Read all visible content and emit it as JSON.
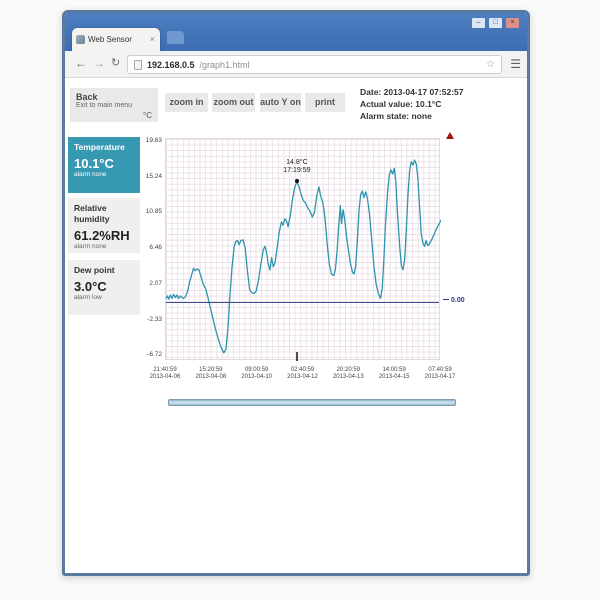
{
  "browser": {
    "tab": {
      "title": "Web Sensor"
    },
    "url": {
      "host": "192.168.0.5",
      "path": "/graph1.html"
    },
    "icons": {
      "back": "←",
      "forward": "→",
      "reload": "↻",
      "bookmark": "☆",
      "menu": "☰",
      "tab_close": "×",
      "minimize": "–",
      "maximize": "□",
      "close_window": "×"
    }
  },
  "page": {
    "back_button": {
      "label": "Back",
      "subtitle": "Exit to main menu"
    },
    "toolbar_buttons": [
      "zoom in",
      "zoom out",
      "auto Y on",
      "print"
    ],
    "status": {
      "date": "Date: 2013-04-17 07:52:57",
      "actual_value": "Actual value: 10.1°C",
      "alarm_state": "Alarm state: none"
    },
    "unit_label": "°C",
    "channels": [
      {
        "name": "Temperature",
        "value": "10.1°C",
        "alarm": "alarm none",
        "selected": true
      },
      {
        "name": "Relative humidity",
        "value": "61.2%RH",
        "alarm": "alarm none",
        "selected": false
      },
      {
        "name": "Dew point",
        "value": "3.0°C",
        "alarm": "alarm low",
        "selected": false
      }
    ]
  },
  "colors": {
    "accent_teal": "#3798b2",
    "chart_line": "#2e93ad",
    "zero_line": "#3a4a96",
    "titlebar_blue": "#4c7ec0",
    "alarm_red": "#a80f0f"
  },
  "chart_data": {
    "type": "line",
    "ylabel": "°C",
    "ylim": [
      -7.3,
      20.0
    ],
    "grid": true,
    "y_ticks": [
      {
        "label": "19.63",
        "value": 19.63
      },
      {
        "label": "15.24",
        "value": 15.24
      },
      {
        "label": "10.85",
        "value": 10.85
      },
      {
        "label": "6.46",
        "value": 6.46
      },
      {
        "label": "2.07",
        "value": 2.07
      },
      {
        "label": "-2.33",
        "value": -2.33
      },
      {
        "label": "-6.72",
        "value": -6.72
      }
    ],
    "x_ticks": [
      {
        "time": "21:40:59",
        "date": "2013-04-06"
      },
      {
        "time": "15:20:59",
        "date": "2013-04-08"
      },
      {
        "time": "09:00:59",
        "date": "2013-04-10"
      },
      {
        "time": "02:40:59",
        "date": "2013-04-12"
      },
      {
        "time": "20:20:59",
        "date": "2013-04-13"
      },
      {
        "time": "14:00:59",
        "date": "2013-04-15"
      },
      {
        "time": "07:40:59",
        "date": "2013-04-17"
      }
    ],
    "zero_line": {
      "value": 0,
      "label": "0.00"
    },
    "annotation": {
      "x_frac": 0.476,
      "value": 14.8,
      "line1": "14.8°C",
      "line2": "17:19:59"
    },
    "series": [
      [
        0.0,
        0.4
      ],
      [
        0.005,
        0.7
      ],
      [
        0.01,
        0.3
      ],
      [
        0.016,
        0.8
      ],
      [
        0.022,
        0.4
      ],
      [
        0.028,
        0.9
      ],
      [
        0.034,
        0.5
      ],
      [
        0.04,
        0.8
      ],
      [
        0.046,
        0.4
      ],
      [
        0.052,
        0.7
      ],
      [
        0.058,
        0.5
      ],
      [
        0.064,
        0.4
      ],
      [
        0.07,
        0.6
      ],
      [
        0.078,
        1.2
      ],
      [
        0.086,
        2.4
      ],
      [
        0.094,
        3.4
      ],
      [
        0.1,
        4.1
      ],
      [
        0.106,
        3.8
      ],
      [
        0.112,
        4.0
      ],
      [
        0.12,
        3.9
      ],
      [
        0.128,
        3.0
      ],
      [
        0.136,
        2.1
      ],
      [
        0.144,
        1.6
      ],
      [
        0.152,
        0.6
      ],
      [
        0.16,
        -0.6
      ],
      [
        0.17,
        -2.0
      ],
      [
        0.18,
        -3.4
      ],
      [
        0.19,
        -4.6
      ],
      [
        0.2,
        -5.6
      ],
      [
        0.21,
        -6.3
      ],
      [
        0.218,
        -5.8
      ],
      [
        0.226,
        -3.0
      ],
      [
        0.232,
        0.5
      ],
      [
        0.24,
        4.2
      ],
      [
        0.248,
        6.8
      ],
      [
        0.254,
        7.4
      ],
      [
        0.26,
        7.5
      ],
      [
        0.266,
        7.0
      ],
      [
        0.272,
        7.5
      ],
      [
        0.28,
        7.6
      ],
      [
        0.288,
        6.6
      ],
      [
        0.296,
        3.8
      ],
      [
        0.304,
        1.5
      ],
      [
        0.312,
        1.1
      ],
      [
        0.32,
        1.0
      ],
      [
        0.328,
        1.3
      ],
      [
        0.336,
        2.6
      ],
      [
        0.346,
        4.8
      ],
      [
        0.354,
        6.4
      ],
      [
        0.36,
        6.8
      ],
      [
        0.366,
        6.0
      ],
      [
        0.372,
        4.6
      ],
      [
        0.378,
        3.9
      ],
      [
        0.384,
        5.4
      ],
      [
        0.39,
        4.3
      ],
      [
        0.396,
        4.7
      ],
      [
        0.404,
        6.6
      ],
      [
        0.412,
        8.6
      ],
      [
        0.42,
        9.8
      ],
      [
        0.426,
        9.4
      ],
      [
        0.432,
        10.2
      ],
      [
        0.438,
        9.9
      ],
      [
        0.444,
        9.2
      ],
      [
        0.452,
        10.6
      ],
      [
        0.46,
        12.6
      ],
      [
        0.468,
        14.0
      ],
      [
        0.476,
        14.8
      ],
      [
        0.484,
        14.1
      ],
      [
        0.492,
        13.1
      ],
      [
        0.5,
        12.4
      ],
      [
        0.508,
        12.1
      ],
      [
        0.516,
        11.5
      ],
      [
        0.524,
        11.1
      ],
      [
        0.532,
        10.4
      ],
      [
        0.54,
        11.0
      ],
      [
        0.548,
        13.0
      ],
      [
        0.556,
        14.1
      ],
      [
        0.562,
        13.0
      ],
      [
        0.57,
        12.2
      ],
      [
        0.578,
        10.4
      ],
      [
        0.586,
        7.2
      ],
      [
        0.594,
        4.6
      ],
      [
        0.602,
        3.4
      ],
      [
        0.61,
        3.2
      ],
      [
        0.616,
        4.0
      ],
      [
        0.622,
        6.2
      ],
      [
        0.628,
        9.4
      ],
      [
        0.634,
        11.8
      ],
      [
        0.638,
        9.6
      ],
      [
        0.644,
        11.3
      ],
      [
        0.65,
        10.0
      ],
      [
        0.656,
        8.2
      ],
      [
        0.662,
        6.6
      ],
      [
        0.67,
        4.8
      ],
      [
        0.678,
        3.6
      ],
      [
        0.684,
        3.4
      ],
      [
        0.69,
        4.4
      ],
      [
        0.696,
        7.6
      ],
      [
        0.702,
        11.2
      ],
      [
        0.708,
        13.2
      ],
      [
        0.714,
        13.6
      ],
      [
        0.72,
        12.8
      ],
      [
        0.726,
        13.5
      ],
      [
        0.732,
        12.8
      ],
      [
        0.74,
        10.8
      ],
      [
        0.748,
        7.6
      ],
      [
        0.756,
        4.4
      ],
      [
        0.764,
        2.2
      ],
      [
        0.772,
        1.0
      ],
      [
        0.78,
        0.4
      ],
      [
        0.786,
        1.6
      ],
      [
        0.792,
        5.0
      ],
      [
        0.798,
        9.6
      ],
      [
        0.806,
        13.6
      ],
      [
        0.812,
        15.6
      ],
      [
        0.818,
        16.2
      ],
      [
        0.824,
        15.7
      ],
      [
        0.83,
        16.4
      ],
      [
        0.836,
        14.6
      ],
      [
        0.842,
        10.8
      ],
      [
        0.85,
        6.6
      ],
      [
        0.856,
        4.4
      ],
      [
        0.862,
        3.9
      ],
      [
        0.868,
        5.2
      ],
      [
        0.874,
        8.8
      ],
      [
        0.88,
        13.2
      ],
      [
        0.886,
        16.2
      ],
      [
        0.892,
        17.2
      ],
      [
        0.898,
        16.8
      ],
      [
        0.904,
        17.4
      ],
      [
        0.91,
        16.9
      ],
      [
        0.916,
        15.2
      ],
      [
        0.922,
        11.6
      ],
      [
        0.928,
        8.4
      ],
      [
        0.934,
        7.2
      ],
      [
        0.94,
        6.8
      ],
      [
        0.946,
        7.5
      ],
      [
        0.952,
        6.9
      ],
      [
        0.958,
        7.1
      ],
      [
        0.966,
        7.6
      ],
      [
        0.974,
        8.2
      ],
      [
        0.984,
        9.0
      ],
      [
        1.0,
        10.0
      ]
    ]
  }
}
